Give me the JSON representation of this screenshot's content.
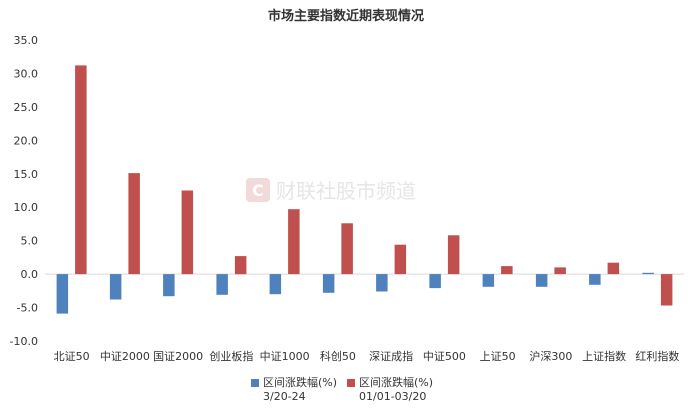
{
  "chart_data": {
    "type": "bar",
    "title": "市场主要指数近期表现情况",
    "categories": [
      "北证50",
      "中证2000",
      "国证2000",
      "创业板指",
      "中证1000",
      "科创50",
      "深证成指",
      "中证500",
      "上证50",
      "沪深300",
      "上证指数",
      "红利指数"
    ],
    "series": [
      {
        "name": "区间涨跌幅(%)",
        "name_line2": "3/20-24",
        "color": "#4f81bd",
        "values": [
          -5.9,
          -3.8,
          -3.3,
          -3.1,
          -3.0,
          -2.8,
          -2.6,
          -2.1,
          -1.9,
          -1.9,
          -1.6,
          0.2
        ]
      },
      {
        "name": "区间涨跌幅(%)",
        "name_line2": "01/01-03/20",
        "color": "#c0504d",
        "values": [
          31.2,
          15.1,
          12.5,
          2.7,
          9.7,
          7.6,
          4.4,
          5.8,
          1.2,
          1.0,
          1.7,
          -4.7
        ]
      }
    ],
    "ylim": [
      -10,
      35
    ],
    "yticks": [
      "-10.0",
      "-5.0",
      "0.0",
      "5.0",
      "10.0",
      "15.0",
      "20.0",
      "25.0",
      "30.0",
      "35.0"
    ],
    "legend_position": "bottom",
    "grid": false
  },
  "watermark": "财联社股市频道",
  "watermark_icon": "c-logo-icon"
}
